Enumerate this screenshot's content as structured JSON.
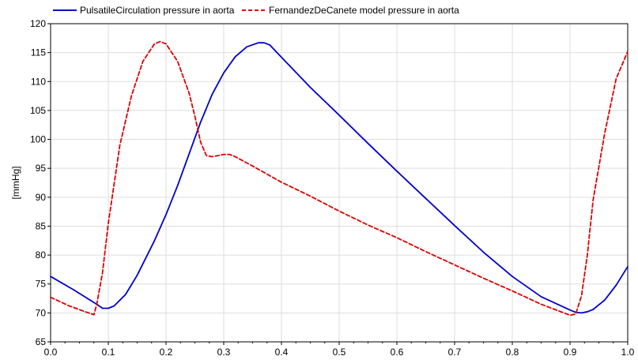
{
  "chart_data": {
    "type": "line",
    "title": "",
    "xlabel": "",
    "ylabel": "[mmHg]",
    "xlim": [
      0.0,
      1.0
    ],
    "ylim": [
      65,
      120
    ],
    "x_ticks": [
      0.0,
      0.1,
      0.2,
      0.3,
      0.4,
      0.5,
      0.6,
      0.7,
      0.8,
      0.9,
      1.0
    ],
    "x_tick_labels": [
      "0.0",
      "0.1",
      "0.2",
      "0.3",
      "0.4",
      "0.5",
      "0.6",
      "0.7",
      "0.8",
      "0.9",
      "1.0"
    ],
    "y_ticks": [
      65,
      70,
      75,
      80,
      85,
      90,
      95,
      100,
      105,
      110,
      115,
      120
    ],
    "y_tick_labels": [
      "65",
      "70",
      "75",
      "80",
      "85",
      "90",
      "95",
      "100",
      "105",
      "110",
      "115",
      "120"
    ],
    "grid": true,
    "legend_position": "top",
    "series": [
      {
        "name": "PulsatileCirculation pressure in aorta",
        "color": "#0000cc",
        "dash": "solid",
        "x": [
          0.0,
          0.04,
          0.08,
          0.09,
          0.1,
          0.11,
          0.13,
          0.15,
          0.18,
          0.2,
          0.22,
          0.24,
          0.26,
          0.28,
          0.3,
          0.32,
          0.34,
          0.36,
          0.37,
          0.38,
          0.4,
          0.45,
          0.5,
          0.55,
          0.6,
          0.65,
          0.7,
          0.75,
          0.8,
          0.85,
          0.9,
          0.91,
          0.92,
          0.93,
          0.94,
          0.96,
          0.98,
          1.0
        ],
        "y": [
          76.3,
          74.0,
          71.5,
          70.8,
          70.8,
          71.2,
          73.2,
          76.5,
          82.5,
          87.0,
          92.0,
          97.5,
          103.0,
          107.8,
          111.5,
          114.3,
          116.0,
          116.7,
          116.7,
          116.3,
          114.2,
          109.0,
          104.2,
          99.3,
          94.5,
          89.8,
          85.1,
          80.5,
          76.3,
          72.8,
          70.5,
          70.1,
          70.0,
          70.2,
          70.6,
          72.2,
          74.8,
          78.0
        ]
      },
      {
        "name": "FernandezDeCanete model pressure in aorta",
        "color": "#dd0000",
        "dash": "dashed",
        "x": [
          0.0,
          0.03,
          0.06,
          0.075,
          0.08,
          0.09,
          0.1,
          0.12,
          0.14,
          0.16,
          0.18,
          0.19,
          0.2,
          0.22,
          0.24,
          0.25,
          0.26,
          0.27,
          0.28,
          0.29,
          0.3,
          0.31,
          0.32,
          0.35,
          0.4,
          0.45,
          0.5,
          0.55,
          0.6,
          0.65,
          0.7,
          0.75,
          0.8,
          0.85,
          0.9,
          0.91,
          0.92,
          0.93,
          0.94,
          0.96,
          0.98,
          1.0
        ],
        "y": [
          72.7,
          71.3,
          70.2,
          69.7,
          71.5,
          77.0,
          85.5,
          99.0,
          107.5,
          113.5,
          116.5,
          116.9,
          116.5,
          113.5,
          108.0,
          104.0,
          99.5,
          97.2,
          97.0,
          97.2,
          97.4,
          97.4,
          97.0,
          95.4,
          92.6,
          90.2,
          87.6,
          85.2,
          83.0,
          80.6,
          78.3,
          76.0,
          73.8,
          71.5,
          69.6,
          69.8,
          73.0,
          80.0,
          89.5,
          101.0,
          110.5,
          115.2
        ]
      }
    ]
  }
}
